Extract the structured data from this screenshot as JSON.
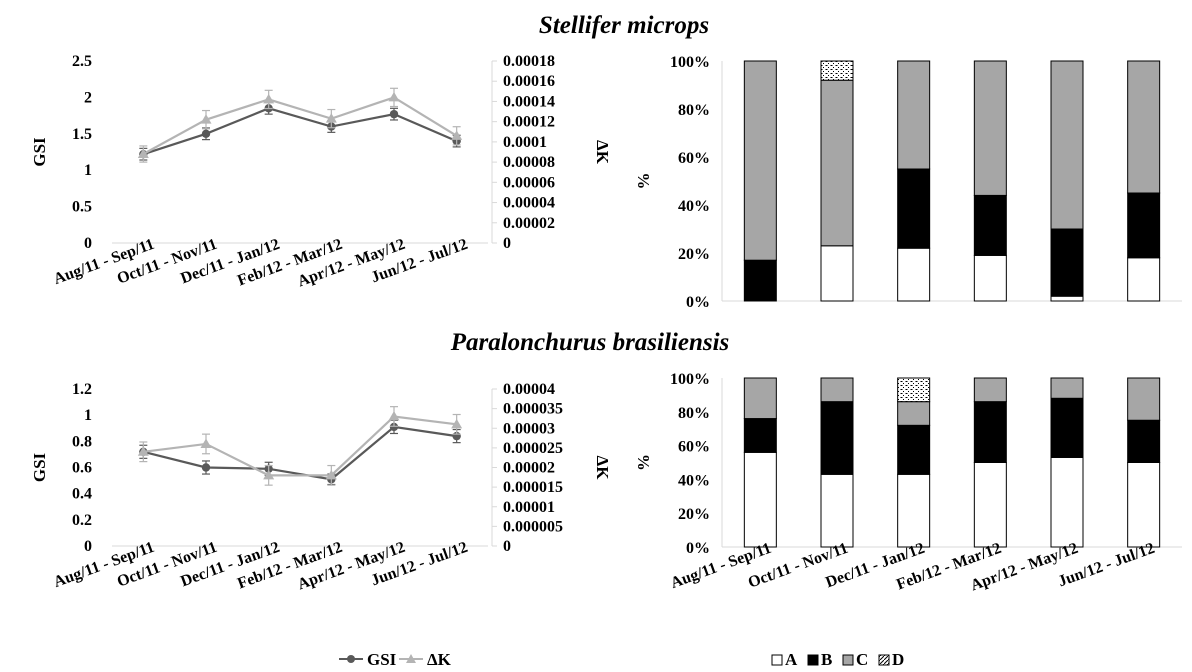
{
  "titles": {
    "top": "Stellifer microps",
    "bottom": "Paralonchurus brasiliensis"
  },
  "colors": {
    "gsi": "#595959",
    "dk": "#b4b4b4",
    "A": "#ffffff",
    "B": "#000000",
    "C": "#a6a6a6",
    "D": "dotted"
  },
  "legend_lines": {
    "gsi": "GSI",
    "dk": "ΔK"
  },
  "legend_bars": {
    "A": "A",
    "B": "B",
    "C": "C",
    "D": "D"
  },
  "chart_data": [
    {
      "id": "top-line",
      "type": "line",
      "panel": "Stellifer microps",
      "categories": [
        "Aug/11 - Sep/11",
        "Oct/11 - Nov/11",
        "Dec/11 - Jan/12",
        "Feb/12 - Mar/12",
        "Apr/12 - May/12",
        "Jun/12 - Jul/12"
      ],
      "ylabel": "GSI",
      "y2label": "ΔK",
      "ylim": [
        0,
        2.5
      ],
      "y2lim": [
        0,
        0.00018
      ],
      "yticks": [
        "0",
        "0.5",
        "1",
        "1.5",
        "2",
        "2.5"
      ],
      "y2ticks": [
        "0",
        "0.00002",
        "0.00004",
        "0.00006",
        "0.00008",
        "0.0001",
        "0.00012",
        "0.00014",
        "0.00016",
        "0.00018"
      ],
      "series": [
        {
          "name": "GSI",
          "axis": "left",
          "values": [
            1.22,
            1.5,
            1.85,
            1.6,
            1.77,
            1.4
          ],
          "errors": [
            0.08,
            0.08,
            0.08,
            0.08,
            0.08,
            0.08
          ]
        },
        {
          "name": "ΔK",
          "axis": "right",
          "values": [
            8.8e-05,
            0.000122,
            0.000142,
            0.000123,
            0.000144,
            0.000106
          ],
          "errors": [
            8e-06,
            9e-06,
            9e-06,
            9e-06,
            9e-06,
            9e-06
          ]
        }
      ]
    },
    {
      "id": "top-bar",
      "type": "bar",
      "panel": "Stellifer microps",
      "stacked": true,
      "categories": [
        "Aug/11 - Sep/11",
        "Oct/11 - Nov/11",
        "Dec/11 - Jan/12",
        "Feb/12 - Mar/12",
        "Apr/12 - May/12",
        "Jun/12 - Jul/12"
      ],
      "ylabel": "%",
      "ylim": [
        0,
        100
      ],
      "yticks": [
        "0%",
        "20%",
        "40%",
        "60%",
        "80%",
        "100%"
      ],
      "series": [
        {
          "name": "A",
          "values": [
            0,
            23,
            22,
            19,
            2,
            18
          ]
        },
        {
          "name": "B",
          "values": [
            17,
            0,
            33,
            25,
            28,
            27
          ]
        },
        {
          "name": "C",
          "values": [
            83,
            69,
            45,
            56,
            70,
            55
          ]
        },
        {
          "name": "D",
          "values": [
            0,
            8,
            0,
            0,
            0,
            0
          ]
        }
      ]
    },
    {
      "id": "bottom-line",
      "type": "line",
      "panel": "Paralonchurus brasiliensis",
      "categories": [
        "Aug/11 - Sep/11",
        "Oct/11 - Nov/11",
        "Dec/11 - Jan/12",
        "Feb/12 - Mar/12",
        "Apr/12 - May/12",
        "Jun/12 - Jul/12"
      ],
      "ylabel": "GSI",
      "y2label": "ΔK",
      "ylim": [
        0,
        1.2
      ],
      "y2lim": [
        0,
        4e-05
      ],
      "yticks": [
        "0",
        "0.2",
        "0.4",
        "0.6",
        "0.8",
        "1",
        "1.2"
      ],
      "y2ticks": [
        "0",
        "0.000005",
        "0.00001",
        "0.000015",
        "0.00002",
        "0.000025",
        "0.00003",
        "0.000035",
        "0.00004"
      ],
      "series": [
        {
          "name": "GSI",
          "axis": "left",
          "values": [
            0.72,
            0.6,
            0.59,
            0.51,
            0.91,
            0.84
          ],
          "errors": [
            0.05,
            0.05,
            0.05,
            0.04,
            0.05,
            0.05
          ]
        },
        {
          "name": "ΔK",
          "axis": "right",
          "values": [
            2.4e-05,
            2.6e-05,
            1.8e-05,
            1.8e-05,
            3.3e-05,
            3.1e-05
          ],
          "errors": [
            2.5e-06,
            2.5e-06,
            2.5e-06,
            2.5e-06,
            2.5e-06,
            2.5e-06
          ]
        }
      ]
    },
    {
      "id": "bottom-bar",
      "type": "bar",
      "panel": "Paralonchurus brasiliensis",
      "stacked": true,
      "categories": [
        "Aug/11 - Sep/11",
        "Oct/11 - Nov/11",
        "Dec/11 - Jan/12",
        "Feb/12 - Mar/12",
        "Apr/12 - May/12",
        "Jun/12 - Jul/12"
      ],
      "ylabel": "%",
      "ylim": [
        0,
        100
      ],
      "yticks": [
        "0%",
        "20%",
        "40%",
        "60%",
        "80%",
        "100%"
      ],
      "series": [
        {
          "name": "A",
          "values": [
            56,
            43,
            43,
            50,
            53,
            50
          ]
        },
        {
          "name": "B",
          "values": [
            20,
            43,
            29,
            36,
            35,
            25
          ]
        },
        {
          "name": "C",
          "values": [
            24,
            14,
            14,
            14,
            12,
            25
          ]
        },
        {
          "name": "D",
          "values": [
            0,
            0,
            14,
            0,
            0,
            0
          ]
        }
      ]
    }
  ]
}
